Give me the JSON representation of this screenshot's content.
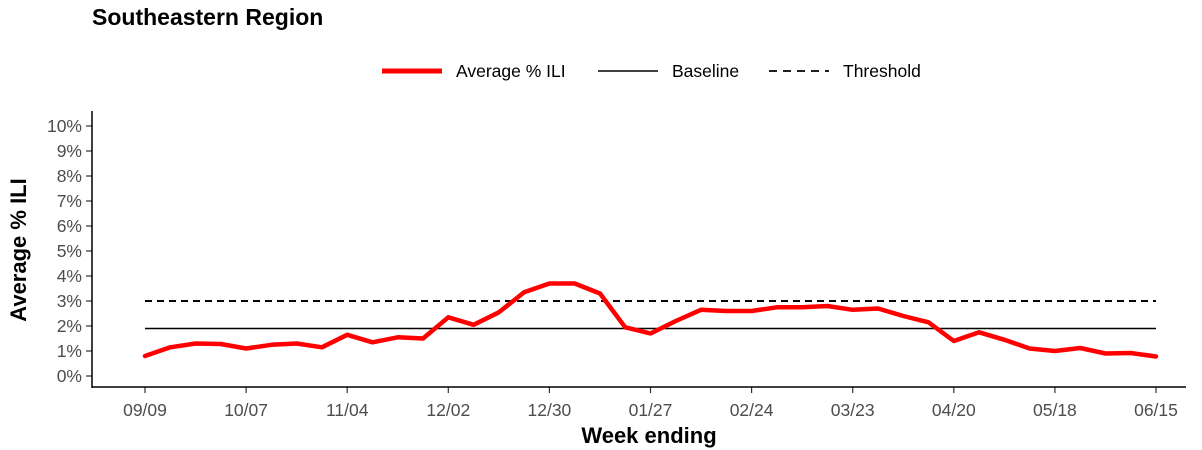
{
  "chart_data": {
    "type": "line",
    "title": "Southeastern Region",
    "xlabel": "Week ending",
    "ylabel": "Average % ILI",
    "ylim": [
      0,
      10
    ],
    "y_ticks": [
      "0%",
      "1%",
      "2%",
      "3%",
      "4%",
      "5%",
      "6%",
      "7%",
      "8%",
      "9%",
      "10%"
    ],
    "x_ticks": [
      "09/09",
      "10/07",
      "11/04",
      "12/02",
      "12/30",
      "01/27",
      "02/24",
      "03/23",
      "04/20",
      "05/18",
      "06/15"
    ],
    "x": [
      "09/09",
      "09/16",
      "09/23",
      "09/30",
      "10/07",
      "10/14",
      "10/21",
      "10/28",
      "11/04",
      "11/11",
      "11/18",
      "11/25",
      "12/02",
      "12/09",
      "12/16",
      "12/23",
      "12/30",
      "01/06",
      "01/13",
      "01/20",
      "01/27",
      "02/03",
      "02/10",
      "02/17",
      "02/24",
      "03/02",
      "03/09",
      "03/16",
      "03/23",
      "03/30",
      "04/06",
      "04/13",
      "04/20",
      "04/27",
      "05/04",
      "05/11",
      "05/18",
      "05/25",
      "06/01",
      "06/08",
      "06/15"
    ],
    "grid": false,
    "legend_position": "top",
    "series": [
      {
        "name": "Average % ILI",
        "color": "#ff0000",
        "values": [
          0.8,
          1.15,
          1.3,
          1.28,
          1.1,
          1.25,
          1.3,
          1.15,
          1.65,
          1.35,
          1.55,
          1.5,
          2.35,
          2.05,
          2.55,
          3.35,
          3.7,
          3.7,
          3.3,
          1.95,
          1.7,
          2.2,
          2.65,
          2.6,
          2.6,
          2.75,
          2.75,
          2.8,
          2.65,
          2.7,
          2.4,
          2.15,
          1.4,
          1.75,
          1.45,
          1.1,
          1.0,
          1.12,
          0.9,
          0.92,
          0.78
        ]
      },
      {
        "name": "Baseline",
        "color": "#000000",
        "style": "solid",
        "value": 1.9
      },
      {
        "name": "Threshold",
        "color": "#000000",
        "style": "dashed",
        "value": 3.0
      }
    ]
  }
}
